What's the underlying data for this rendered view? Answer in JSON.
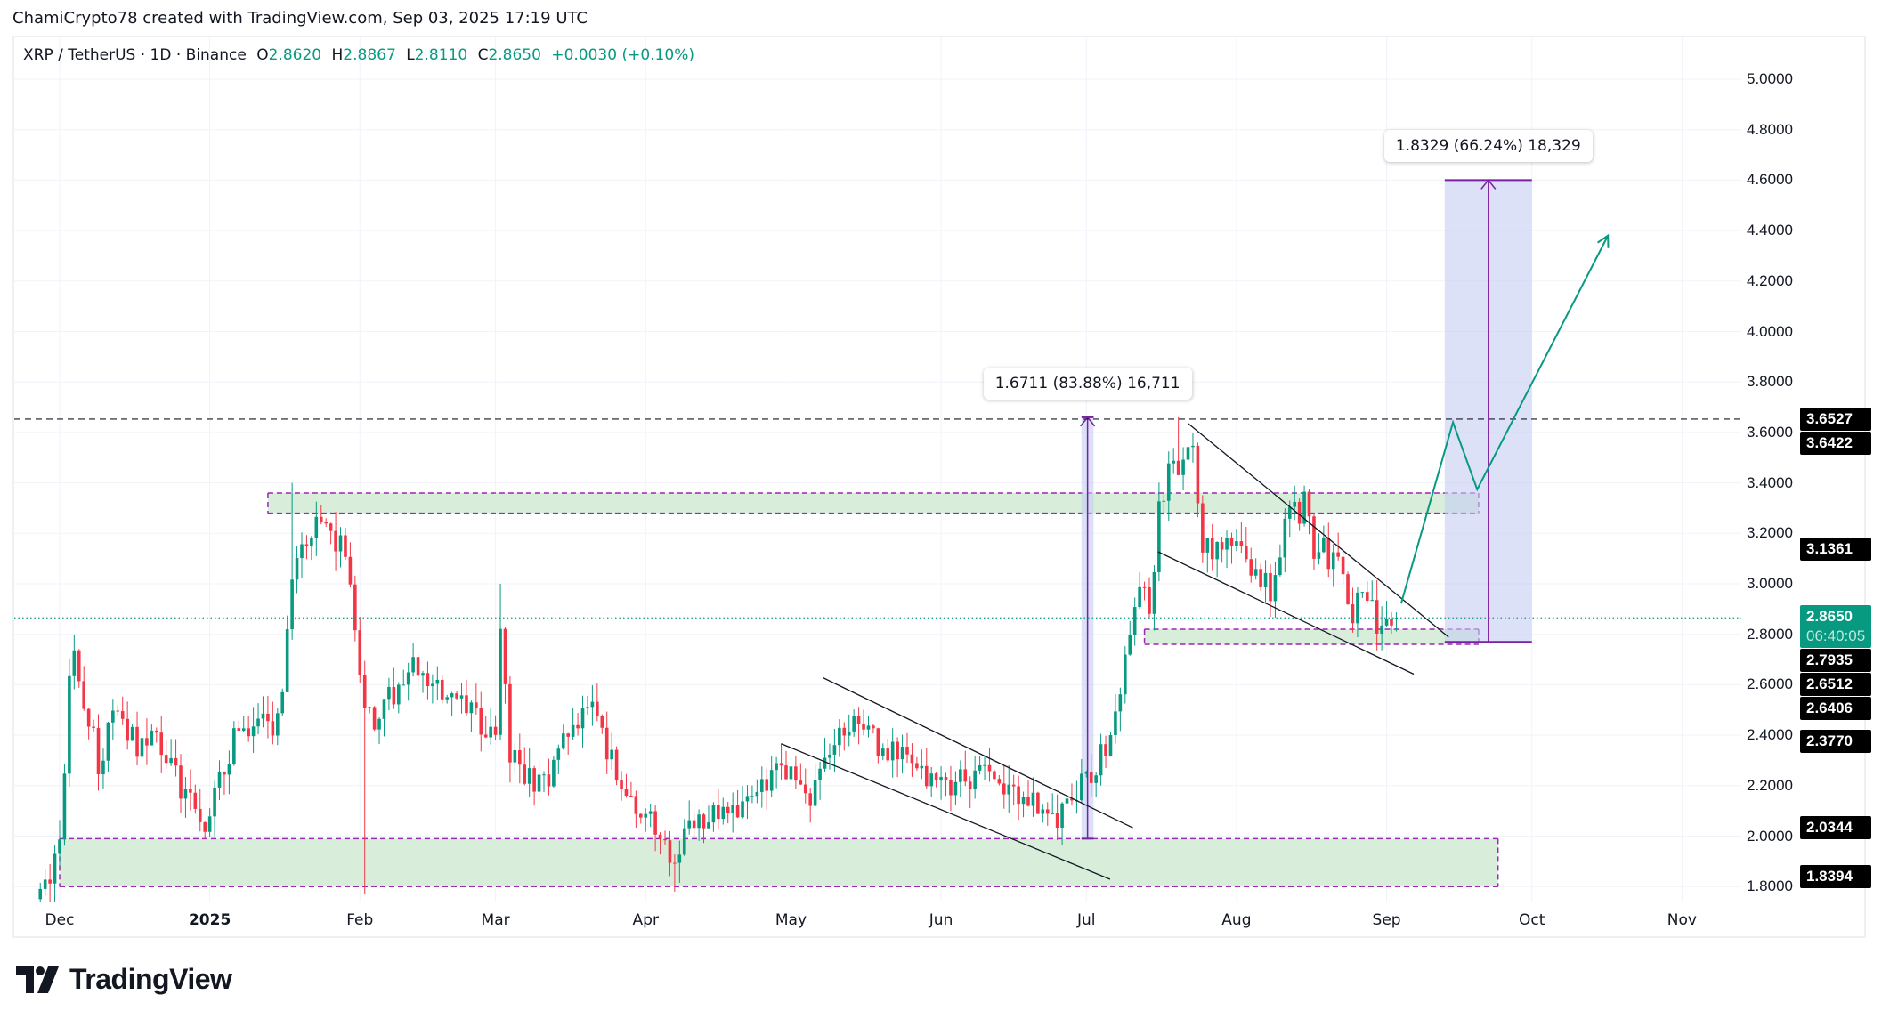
{
  "header": {
    "credit": "ChamiCrypto78 created with TradingView.com, Sep 03, 2025 17:19 UTC",
    "symbol": "XRP / TetherUS · 1D · Binance",
    "o_label": "O",
    "o": "2.8620",
    "h_label": "H",
    "h": "2.8867",
    "l_label": "L",
    "l": "2.8110",
    "c_label": "C",
    "c": "2.8650",
    "change": "+0.0030 (+0.10%)"
  },
  "price_axis": {
    "ticks": [
      "1.8000",
      "2.0000",
      "2.2000",
      "2.4000",
      "2.6000",
      "2.8000",
      "3.0000",
      "3.2000",
      "3.4000",
      "3.6000",
      "3.8000",
      "4.0000",
      "4.2000",
      "4.4000",
      "4.6000",
      "4.8000",
      "5.0000"
    ],
    "labels": [
      "3.6527",
      "3.6422",
      "3.1361",
      "2.7935",
      "2.6512",
      "2.6406",
      "2.3770",
      "2.0344",
      "1.8394"
    ],
    "current_price": "2.8650",
    "countdown": "06:40:05"
  },
  "time_axis": {
    "labels": [
      "Dec",
      "2025",
      "Feb",
      "Mar",
      "Apr",
      "May",
      "Jun",
      "Jul",
      "Aug",
      "Sep",
      "Oct",
      "Nov"
    ]
  },
  "measures": {
    "first": "1.6711 (83.88%) 16,711",
    "second": "1.8329 (66.24%) 18,329"
  },
  "logo": {
    "text": "TradingView"
  },
  "colors": {
    "up": "#089981",
    "down": "#f23645",
    "zone": "#d8eedb",
    "zone_border": "#9c27b0",
    "measure": "#c5cdf2",
    "projection": "#089981"
  },
  "chart_data": {
    "type": "candlestick",
    "title": "XRP / TetherUS · 1D · Binance",
    "x_unit": "days since 2024-12-01",
    "ylim": [
      1.78,
      5.1
    ],
    "xlim": [
      -10,
      356
    ],
    "x_ticks": [
      0,
      31,
      62,
      90,
      121,
      151,
      182,
      212,
      243,
      274,
      304,
      335
    ],
    "y_ticks": [
      1.8,
      2.0,
      2.2,
      2.4,
      2.6,
      2.8,
      3.0,
      3.2,
      3.4,
      3.6,
      3.8,
      4.0,
      4.2,
      4.4,
      4.6,
      4.8,
      5.0
    ],
    "close_path": [
      [
        -4,
        1.75
      ],
      [
        0,
        1.95
      ],
      [
        2,
        2.6
      ],
      [
        3,
        2.7
      ],
      [
        8,
        2.3
      ],
      [
        12,
        2.5
      ],
      [
        16,
        2.35
      ],
      [
        20,
        2.4
      ],
      [
        25,
        2.2
      ],
      [
        30,
        2.05
      ],
      [
        31,
        2.1
      ],
      [
        36,
        2.4
      ],
      [
        45,
        2.45
      ],
      [
        48,
        3.0
      ],
      [
        50,
        3.2
      ],
      [
        56,
        3.2
      ],
      [
        60,
        3.05
      ],
      [
        62,
        2.7
      ],
      [
        63,
        2.5
      ],
      [
        66,
        2.45
      ],
      [
        72,
        2.7
      ],
      [
        76,
        2.6
      ],
      [
        80,
        2.55
      ],
      [
        90,
        2.4
      ],
      [
        91,
        2.85
      ],
      [
        93,
        2.3
      ],
      [
        100,
        2.2
      ],
      [
        104,
        2.4
      ],
      [
        110,
        2.5
      ],
      [
        116,
        2.2
      ],
      [
        122,
        2.05
      ],
      [
        127,
        1.9
      ],
      [
        130,
        2.05
      ],
      [
        140,
        2.1
      ],
      [
        146,
        2.2
      ],
      [
        150,
        2.28
      ],
      [
        155,
        2.15
      ],
      [
        160,
        2.35
      ],
      [
        163,
        2.45
      ],
      [
        170,
        2.35
      ],
      [
        175,
        2.3
      ],
      [
        182,
        2.2
      ],
      [
        190,
        2.25
      ],
      [
        200,
        2.15
      ],
      [
        205,
        2.05
      ],
      [
        210,
        2.18
      ],
      [
        213,
        2.25
      ],
      [
        216,
        2.35
      ],
      [
        219,
        2.55
      ],
      [
        222,
        2.9
      ],
      [
        225,
        2.95
      ],
      [
        228,
        3.4
      ],
      [
        230,
        3.5
      ],
      [
        231,
        3.45
      ],
      [
        234,
        3.55
      ],
      [
        236,
        3.2
      ],
      [
        240,
        3.1
      ],
      [
        245,
        3.15
      ],
      [
        248,
        2.95
      ],
      [
        250,
        3.0
      ],
      [
        252,
        3.1
      ],
      [
        254,
        3.3
      ],
      [
        257,
        3.3
      ],
      [
        260,
        3.1
      ],
      [
        263,
        3.15
      ],
      [
        266,
        2.9
      ],
      [
        270,
        2.95
      ],
      [
        273,
        2.8
      ],
      [
        276,
        2.865
      ]
    ],
    "last_candle": {
      "open": 2.862,
      "high": 2.8867,
      "low": 2.811,
      "close": 2.865
    },
    "horizontal_lines": [
      3.6527,
      3.6422
    ],
    "current_price_line": 2.865,
    "zones": [
      {
        "from": 43,
        "to": 293,
        "top": 3.36,
        "bottom": 3.28
      },
      {
        "from": 0,
        "to": 297,
        "top": 1.99,
        "bottom": 1.8
      },
      {
        "from": 224,
        "to": 293,
        "top": 2.82,
        "bottom": 2.76
      }
    ],
    "measures": [
      {
        "from": 211,
        "to": 213.5,
        "low": 1.99,
        "high": 3.66,
        "label": "1.6711 (83.88%) 16,711"
      },
      {
        "from": 286,
        "to": 304,
        "low": 2.77,
        "high": 4.6,
        "label": "1.8329 (66.24%) 18,329"
      }
    ],
    "trendlines": [
      [
        [
          157.7,
          2.627
        ],
        [
          221.6,
          2.033
        ]
      ],
      [
        [
          149,
          2.366
        ],
        [
          216.9,
          1.829
        ]
      ],
      [
        [
          233,
          3.636
        ],
        [
          286.8,
          2.789
        ]
      ],
      [
        [
          226.8,
          3.127
        ],
        [
          279.6,
          2.642
        ]
      ]
    ],
    "projection": [
      [
        277,
        2.922
      ],
      [
        287.7,
        3.64
      ],
      [
        292.7,
        3.374
      ],
      [
        319.7,
        4.38
      ]
    ]
  }
}
